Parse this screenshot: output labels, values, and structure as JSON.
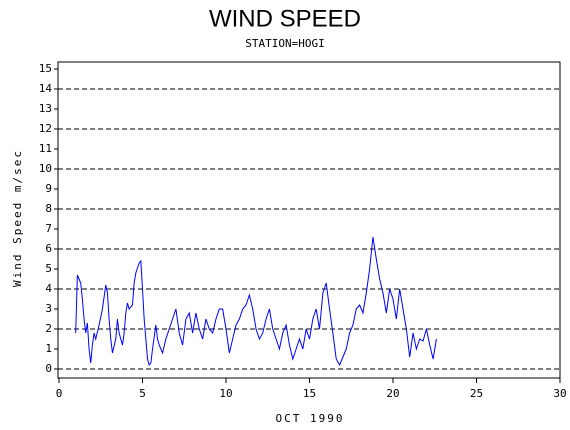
{
  "chart_data": {
    "type": "line",
    "title": "WIND SPEED",
    "subtitle": "STATION=HOGI",
    "x_label": "OCT 1990",
    "y_label": "Wind Speed m/sec",
    "xlim": [
      -0.06,
      30
    ],
    "ylim": [
      -0.45,
      15.35
    ],
    "xticks": [
      0,
      5,
      10,
      15,
      20,
      25,
      30
    ],
    "yticks": [
      0,
      1,
      2,
      3,
      4,
      5,
      6,
      7,
      8,
      9,
      10,
      11,
      12,
      13,
      14,
      15
    ],
    "grid": true,
    "series": [
      {
        "color": "#0000ff",
        "x": [
          1.0,
          1.1,
          1.2,
          1.3,
          1.4,
          1.5,
          1.6,
          1.7,
          1.8,
          1.9,
          2.0,
          2.1,
          2.2,
          2.4,
          2.6,
          2.8,
          2.9,
          3.0,
          3.1,
          3.2,
          3.4,
          3.5,
          3.6,
          3.8,
          3.9,
          4.0,
          4.1,
          4.2,
          4.4,
          4.5,
          4.6,
          4.8,
          4.9,
          5.0,
          5.1,
          5.2,
          5.3,
          5.4,
          5.5,
          5.6,
          5.8,
          5.9,
          6.0,
          6.2,
          6.4,
          6.6,
          6.8,
          7.0,
          7.2,
          7.4,
          7.6,
          7.8,
          8.0,
          8.2,
          8.4,
          8.6,
          8.8,
          9.0,
          9.2,
          9.4,
          9.6,
          9.8,
          10.0,
          10.2,
          10.4,
          10.6,
          10.8,
          11.0,
          11.2,
          11.4,
          11.6,
          11.8,
          12.0,
          12.2,
          12.4,
          12.6,
          12.8,
          13.0,
          13.2,
          13.4,
          13.6,
          13.8,
          14.0,
          14.2,
          14.4,
          14.6,
          14.8,
          15.0,
          15.2,
          15.4,
          15.6,
          15.8,
          16.0,
          16.2,
          16.4,
          16.6,
          16.8,
          17.0,
          17.2,
          17.4,
          17.6,
          17.8,
          18.0,
          18.2,
          18.4,
          18.6,
          18.8,
          19.0,
          19.2,
          19.4,
          19.6,
          19.8,
          20.0,
          20.2,
          20.4,
          20.6,
          20.8,
          21.0,
          21.2,
          21.4,
          21.6,
          21.8,
          22.0,
          22.2,
          22.4,
          22.6
        ],
        "values": [
          1.8,
          4.7,
          4.5,
          4.3,
          3.5,
          2.5,
          1.8,
          2.3,
          1.0,
          0.3,
          1.2,
          1.8,
          1.5,
          2.2,
          3.0,
          4.2,
          3.8,
          2.5,
          1.5,
          0.8,
          1.5,
          2.5,
          1.8,
          1.2,
          1.8,
          2.8,
          3.3,
          3.0,
          3.2,
          4.3,
          4.8,
          5.3,
          5.4,
          4.0,
          2.5,
          1.5,
          0.5,
          0.2,
          0.3,
          1.0,
          2.2,
          1.5,
          1.2,
          0.8,
          1.5,
          2.0,
          2.5,
          3.0,
          1.8,
          1.2,
          2.5,
          2.8,
          1.8,
          2.8,
          2.0,
          1.5,
          2.5,
          2.0,
          1.8,
          2.5,
          3.0,
          3.0,
          2.0,
          0.8,
          1.5,
          2.2,
          2.5,
          3.0,
          3.2,
          3.7,
          3.0,
          2.0,
          1.5,
          1.8,
          2.5,
          3.0,
          2.0,
          1.5,
          1.0,
          1.8,
          2.2,
          1.2,
          0.5,
          1.0,
          1.5,
          1.0,
          2.0,
          1.5,
          2.5,
          3.0,
          2.0,
          3.8,
          4.3,
          3.0,
          1.8,
          0.5,
          0.2,
          0.6,
          1.0,
          1.8,
          2.2,
          3.0,
          3.2,
          2.8,
          3.8,
          5.0,
          6.6,
          5.5,
          4.5,
          3.8,
          2.8,
          4.0,
          3.5,
          2.5,
          4.0,
          3.0,
          2.0,
          0.6,
          1.8,
          1.0,
          1.5,
          1.4,
          2.0,
          1.2,
          0.5,
          1.5
        ]
      }
    ]
  }
}
